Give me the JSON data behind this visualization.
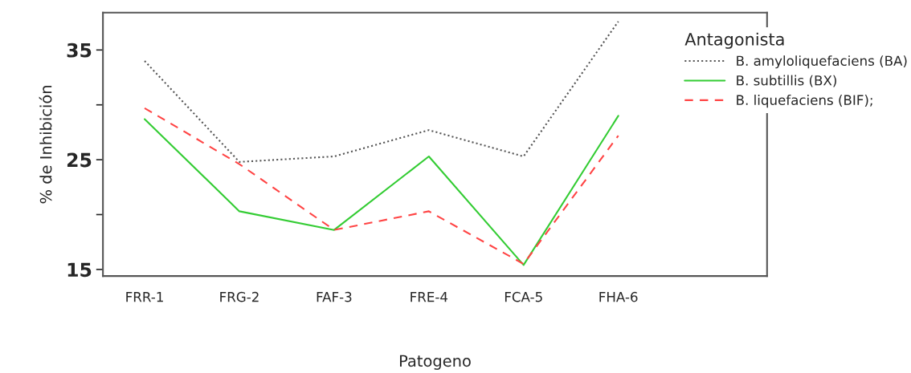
{
  "chart_data": {
    "type": "line",
    "xlabel": "Patogeno",
    "ylabel": "% de Inhibición",
    "legend_title": "Antagonista",
    "categories": [
      "FRR-1",
      "FRG-2",
      "FAF-3",
      "FRE-4",
      "FCA-5",
      "FHA-6"
    ],
    "series": [
      {
        "name": "B. amyloliquefaciens (BA)",
        "color": "#555555",
        "line_style": "dotted",
        "values": [
          34.0,
          24.8,
          25.3,
          27.7,
          25.3,
          37.6
        ]
      },
      {
        "name": "B. subtillis (BX)",
        "color": "#33cc33",
        "line_style": "solid",
        "values": [
          28.7,
          20.3,
          18.6,
          25.3,
          15.4,
          29.0
        ]
      },
      {
        "name": "B. liquefaciens (BIF);",
        "color": "#ff4444",
        "line_style": "dashed",
        "values": [
          29.7,
          24.6,
          18.6,
          20.3,
          15.5,
          27.2
        ]
      }
    ],
    "ylim": [
      14.4,
      38.4
    ],
    "yticks": [
      15,
      {
        "value": 20,
        "label": null
      },
      25,
      {
        "value": 30,
        "label": null
      },
      35
    ],
    "legend": "top right",
    "grid": false,
    "marker": "none"
  }
}
